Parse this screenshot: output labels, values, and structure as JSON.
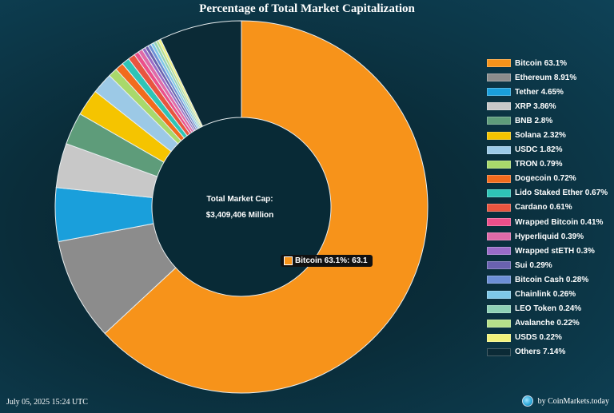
{
  "title": "Percentage of Total Market Capitalization",
  "center": {
    "label": "Total Market Cap:",
    "value": "$3,409,406 Million"
  },
  "tooltip": {
    "text": "Bitcoin 63.1%: 63.1"
  },
  "footer": {
    "date": "July 05, 2025 15:24 UTC",
    "credit": "by CoinMarkets.today",
    "credit_icon": "globe-icon"
  },
  "chart_data": {
    "type": "pie",
    "variant": "donut",
    "legend_position": "right",
    "series": [
      {
        "label": "Bitcoin 63.1%",
        "value": 63.1,
        "color": "#f7931a"
      },
      {
        "label": "Ethereum 8.91%",
        "value": 8.91,
        "color": "#8c8c8c"
      },
      {
        "label": "Tether 4.65%",
        "value": 4.65,
        "color": "#1a9fdb"
      },
      {
        "label": "XRP 3.86%",
        "value": 3.86,
        "color": "#c8c8c8"
      },
      {
        "label": "BNB 2.8%",
        "value": 2.8,
        "color": "#5e9c7a"
      },
      {
        "label": "Solana 2.32%",
        "value": 2.32,
        "color": "#f5c400"
      },
      {
        "label": "USDC 1.82%",
        "value": 1.82,
        "color": "#9cc9e6"
      },
      {
        "label": "TRON 0.79%",
        "value": 0.79,
        "color": "#a9d96b"
      },
      {
        "label": "Dogecoin 0.72%",
        "value": 0.72,
        "color": "#f26b1d"
      },
      {
        "label": "Lido Staked Ether 0.67%",
        "value": 0.67,
        "color": "#2ec4b6"
      },
      {
        "label": "Cardano 0.61%",
        "value": 0.61,
        "color": "#e8553f"
      },
      {
        "label": "Wrapped Bitcoin 0.41%",
        "value": 0.41,
        "color": "#ec4f8a"
      },
      {
        "label": "Hyperliquid 0.39%",
        "value": 0.39,
        "color": "#e06aa8"
      },
      {
        "label": "Wrapped stETH 0.3%",
        "value": 0.3,
        "color": "#9a6bc7"
      },
      {
        "label": "Sui 0.29%",
        "value": 0.29,
        "color": "#6a62b0"
      },
      {
        "label": "Bitcoin Cash 0.28%",
        "value": 0.28,
        "color": "#6c8fd6"
      },
      {
        "label": "Chainlink 0.26%",
        "value": 0.26,
        "color": "#7ec8e8"
      },
      {
        "label": "LEO Token 0.24%",
        "value": 0.24,
        "color": "#8fd1b5"
      },
      {
        "label": "Avalanche 0.22%",
        "value": 0.22,
        "color": "#b7e08a"
      },
      {
        "label": "USDS 0.22%",
        "value": 0.22,
        "color": "#f2f27a"
      },
      {
        "label": "Others 7.14%",
        "value": 7.14,
        "color": "#0b2a36"
      }
    ]
  }
}
